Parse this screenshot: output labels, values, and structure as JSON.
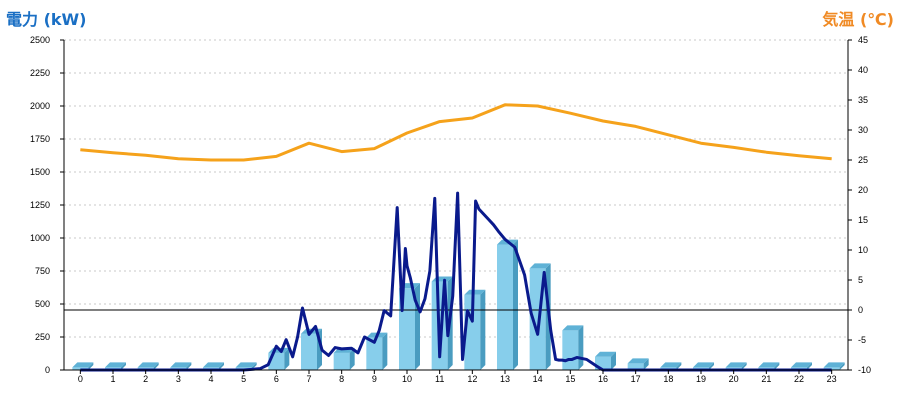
{
  "chart_data": {
    "type": "bar+line",
    "left_axis_label": "電力 (kW)",
    "right_axis_label": "気温 (℃)",
    "left_ylim": [
      0,
      2500
    ],
    "left_ticks": [
      0,
      250,
      500,
      750,
      1000,
      1250,
      1500,
      1750,
      2000,
      2250,
      2500
    ],
    "right_ylim": [
      -10,
      45
    ],
    "right_ticks": [
      -10,
      -5,
      0,
      5,
      10,
      15,
      20,
      25,
      30,
      35,
      40,
      45
    ],
    "categories": [
      "0",
      "1",
      "2",
      "3",
      "4",
      "5",
      "6",
      "7",
      "8",
      "9",
      "10",
      "11",
      "12",
      "13",
      "14",
      "15",
      "16",
      "17",
      "18",
      "19",
      "20",
      "21",
      "22",
      "23"
    ],
    "grid": "horizontal dashed",
    "zero_line_right_axis": 0,
    "hourly_power_bars": [
      20,
      20,
      20,
      20,
      20,
      20,
      130,
      275,
      130,
      245,
      620,
      670,
      570,
      950,
      770,
      300,
      100,
      50,
      20,
      20,
      20,
      20,
      20,
      20
    ],
    "temperature_line": {
      "x": [
        0,
        1,
        2,
        3,
        4,
        5,
        6,
        7,
        8,
        9,
        10,
        11,
        12,
        13,
        14,
        15,
        16,
        17,
        18,
        19,
        20,
        21,
        22,
        23
      ],
      "values": [
        26.7,
        26.2,
        25.8,
        25.2,
        25.0,
        25.0,
        25.6,
        27.8,
        26.4,
        26.9,
        29.5,
        31.4,
        32.0,
        34.2,
        34.0,
        32.8,
        31.5,
        30.6,
        29.2,
        27.8,
        27.1,
        26.3,
        25.7,
        25.2
      ],
      "color": "#f5a21b"
    },
    "power_line": {
      "x": [
        0,
        1,
        2,
        3,
        4,
        5,
        5.5,
        5.75,
        6,
        6.15,
        6.3,
        6.5,
        6.65,
        6.8,
        7.0,
        7.2,
        7.4,
        7.6,
        7.8,
        8.0,
        8.3,
        8.5,
        8.7,
        8.85,
        9.0,
        9.15,
        9.3,
        9.5,
        9.7,
        9.85,
        9.95,
        10.0,
        10.1,
        10.25,
        10.4,
        10.55,
        10.7,
        10.85,
        11.0,
        11.15,
        11.25,
        11.4,
        11.55,
        11.7,
        11.85,
        12.0,
        12.1,
        12.2,
        12.35,
        12.5,
        12.65,
        12.8,
        13.0,
        13.3,
        13.6,
        13.8,
        14.0,
        14.2,
        14.4,
        14.55,
        14.65,
        14.75,
        14.85,
        14.95,
        15.05,
        15.2,
        15.5,
        15.8,
        16.0,
        16.2,
        16.4,
        16.6,
        16.8,
        17.0,
        18,
        19,
        20,
        21,
        22,
        23
      ],
      "values": [
        0,
        0,
        0,
        0,
        0,
        0,
        10,
        40,
        180,
        140,
        230,
        100,
        250,
        470,
        270,
        330,
        150,
        110,
        170,
        160,
        165,
        130,
        250,
        230,
        210,
        300,
        450,
        410,
        1230,
        450,
        920,
        790,
        700,
        530,
        440,
        540,
        750,
        1300,
        100,
        680,
        260,
        560,
        1340,
        80,
        450,
        370,
        1280,
        1220,
        1180,
        1140,
        1100,
        1050,
        990,
        930,
        720,
        430,
        270,
        740,
        300,
        80,
        75,
        75,
        70,
        80,
        80,
        95,
        80,
        30,
        0,
        0,
        0,
        0,
        0,
        0,
        0,
        0,
        0,
        0,
        0,
        0
      ],
      "color": "#0a1a8c"
    }
  }
}
